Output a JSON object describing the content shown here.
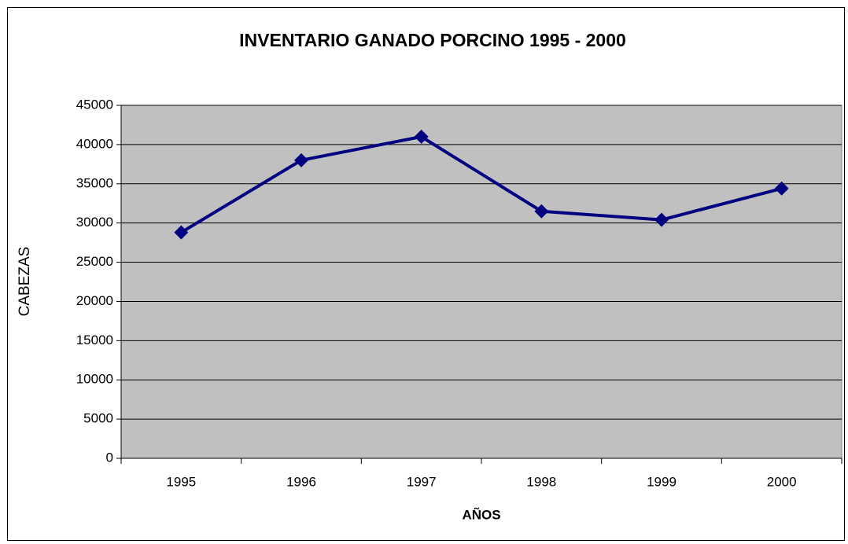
{
  "chart_data": {
    "type": "line",
    "title": "INVENTARIO GANADO PORCINO 1995 - 2000",
    "x_label": "AÑOS",
    "y_label": "CABEZAS",
    "categories": [
      "1995",
      "1996",
      "1997",
      "1998",
      "1999",
      "2000"
    ],
    "values": [
      28800,
      38000,
      41000,
      31500,
      30400,
      34400
    ],
    "color": "#000080",
    "ylim": [
      0,
      45000
    ],
    "yticks": [
      0,
      5000,
      10000,
      15000,
      20000,
      25000,
      30000,
      35000,
      40000,
      45000
    ],
    "grid": true,
    "plot_background": "#c0c0c0"
  }
}
